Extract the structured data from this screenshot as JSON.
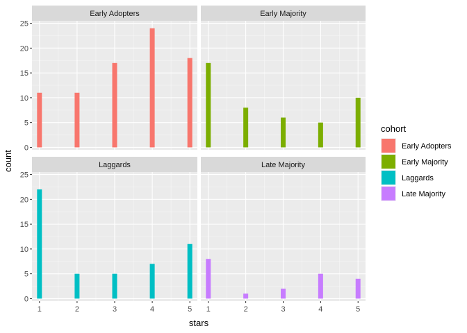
{
  "chart_data": {
    "type": "bar",
    "xlabel": "stars",
    "ylabel": "count",
    "x_ticks": [
      "1",
      "2",
      "3",
      "4",
      "5"
    ],
    "y_ticks": [
      "0",
      "5",
      "10",
      "15",
      "20",
      "25"
    ],
    "ylim": [
      0,
      25
    ],
    "grid": true,
    "legend": {
      "title": "cohort",
      "position": "right",
      "entries": [
        {
          "label": "Early Adopters",
          "color": "#F8766D"
        },
        {
          "label": "Early Majority",
          "color": "#7CAE00"
        },
        {
          "label": "Laggards",
          "color": "#00BFC4"
        },
        {
          "label": "Late Majority",
          "color": "#C77CFF"
        }
      ]
    },
    "facets": [
      {
        "title": "Early Adopters",
        "color": "#F8766D",
        "x": [
          1,
          2,
          3,
          4,
          5
        ],
        "values": [
          11,
          11,
          17,
          24,
          18
        ]
      },
      {
        "title": "Early Majority",
        "color": "#7CAE00",
        "x": [
          1,
          2,
          3,
          4,
          5
        ],
        "values": [
          17,
          8,
          6,
          5,
          10
        ]
      },
      {
        "title": "Laggards",
        "color": "#00BFC4",
        "x": [
          1,
          2,
          3,
          4,
          5
        ],
        "values": [
          22,
          5,
          5,
          7,
          11
        ]
      },
      {
        "title": "Late Majority",
        "color": "#C77CFF",
        "x": [
          1,
          2,
          3,
          4,
          5
        ],
        "values": [
          8,
          1,
          2,
          5,
          4
        ]
      }
    ]
  }
}
